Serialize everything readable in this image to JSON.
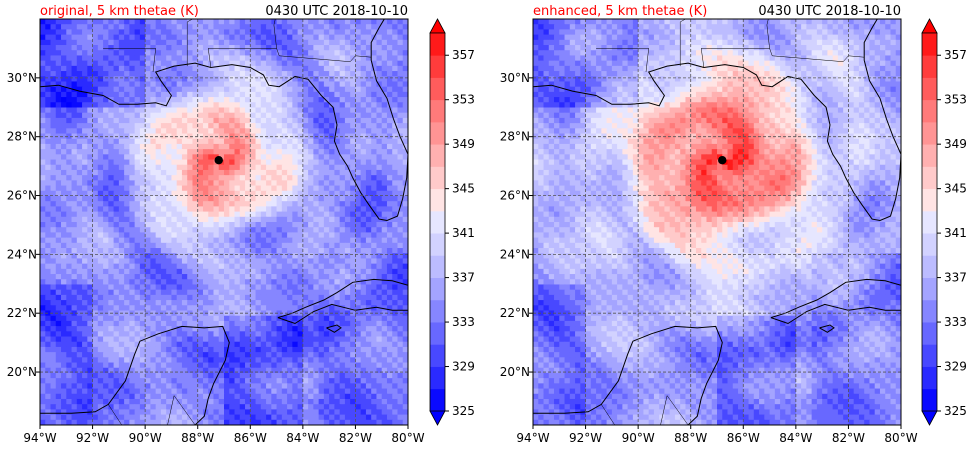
{
  "colors": {
    "title_left": "#ff0000",
    "title_right": "#000000",
    "gridline": "#555555",
    "coast": "#000000",
    "eye": "#000000"
  },
  "colorbar": {
    "ticks": [
      325,
      329,
      333,
      337,
      341,
      345,
      349,
      353,
      357
    ],
    "levels": [
      325,
      327,
      329,
      331,
      333,
      335,
      337,
      339,
      341,
      343,
      345,
      347,
      349,
      351,
      353,
      355,
      357,
      359
    ],
    "colors": [
      "#0a0aff",
      "#2a2aff",
      "#4848ff",
      "#6868ff",
      "#8686ff",
      "#a4a4ff",
      "#bcbcff",
      "#d2d2ff",
      "#e6e6ff",
      "#ffe4e4",
      "#ffcaca",
      "#ffb0b0",
      "#ff9494",
      "#ff7a7a",
      "#ff5c5c",
      "#ff3c3c",
      "#ff1a1a"
    ],
    "under_color": "#0000ff",
    "over_color": "#ff0000",
    "extend": "both"
  },
  "chart_data": [
    {
      "type": "heatmap",
      "title": "original, 5 km thetae (K)",
      "time_label": "0430 UTC 2018-10-10",
      "xlim": [
        -94,
        -80
      ],
      "ylim": [
        18.2,
        32.0
      ],
      "xticks": [
        -94,
        -92,
        -90,
        -88,
        -86,
        -84,
        -82,
        -80
      ],
      "xtick_labels": [
        "94°W",
        "92°W",
        "90°W",
        "88°W",
        "86°W",
        "84°W",
        "82°W",
        "80°W"
      ],
      "yticks": [
        20,
        22,
        24,
        26,
        28,
        30
      ],
      "ytick_labels": [
        "20°N",
        "22°N",
        "24°N",
        "26°N",
        "28°N",
        "30°N"
      ],
      "grid": true,
      "storm_center": {
        "lon": -87.2,
        "lat": 27.2
      },
      "peak_thetae": 357,
      "background_thetae": 334,
      "warm_core_radius_deg": 1.9
    },
    {
      "type": "heatmap",
      "title": "enhanced, 5 km thetae (K)",
      "time_label": "0430 UTC 2018-10-10",
      "xlim": [
        -94,
        -80
      ],
      "ylim": [
        18.2,
        32.0
      ],
      "xticks": [
        -94,
        -92,
        -90,
        -88,
        -86,
        -84,
        -82,
        -80
      ],
      "xtick_labels": [
        "94°W",
        "92°W",
        "90°W",
        "88°W",
        "86°W",
        "84°W",
        "82°W",
        "80°W"
      ],
      "yticks": [
        20,
        22,
        24,
        26,
        28,
        30
      ],
      "ytick_labels": [
        "20°N",
        "22°N",
        "24°N",
        "26°N",
        "28°N",
        "30°N"
      ],
      "grid": true,
      "storm_center": {
        "lon": -86.8,
        "lat": 27.2
      },
      "peak_thetae": 358,
      "background_thetae": 335,
      "warm_core_radius_deg": 3.0
    }
  ]
}
